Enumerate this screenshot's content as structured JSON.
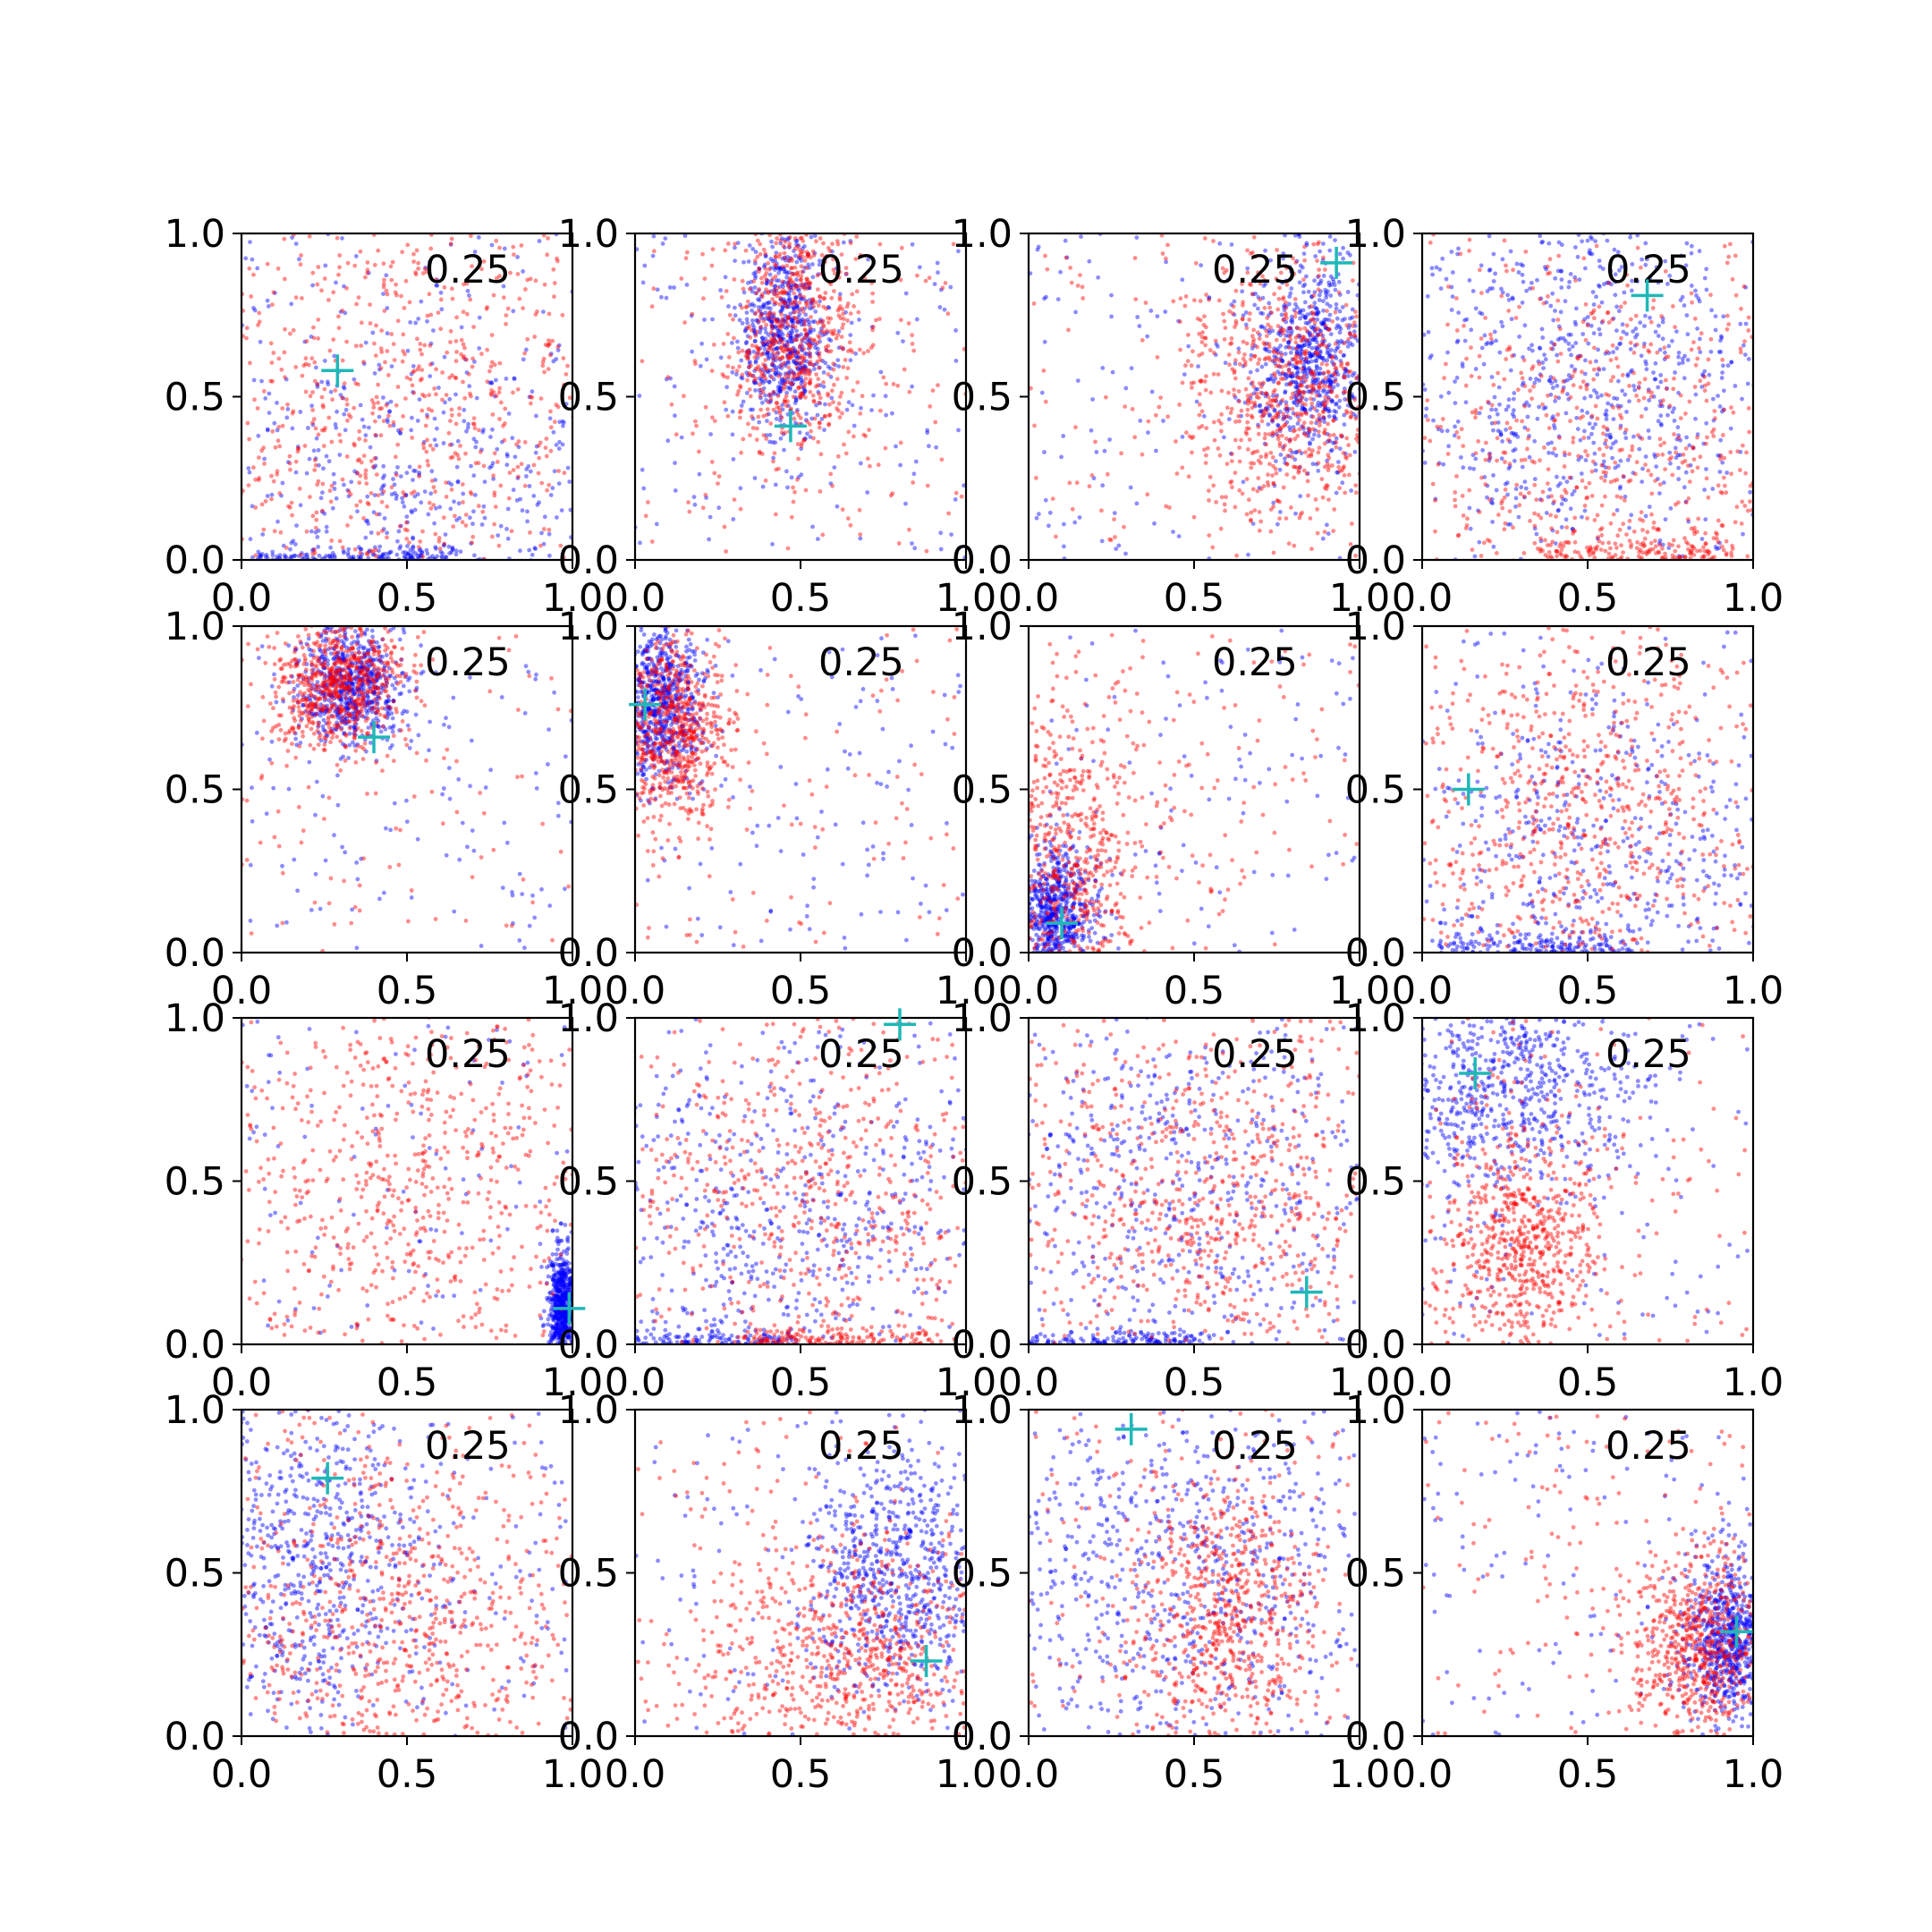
{
  "colors": {
    "series_a": "#0000ff",
    "series_b": "#ff0000",
    "marker": "#1fb8b8",
    "axes": "#000000",
    "background": "#ffffff"
  },
  "chart_data": {
    "type": "scatter",
    "layout": "4x4 grid of scatter panels",
    "grid": false,
    "legend": "none",
    "xlim": [
      0,
      1
    ],
    "ylim": [
      0,
      1
    ],
    "tick_labels": [
      "0.0",
      "0.5",
      "1.0"
    ],
    "panel_annotation": "0.25",
    "panels": [
      {
        "marker": [
          0.29,
          0.58
        ],
        "blue": {
          "cx": 0.55,
          "cy": 0.2,
          "sx": 0.4,
          "sy": 0.3,
          "band": [
            0.35,
            0.02
          ]
        },
        "red": {
          "cx": 0.5,
          "cy": 0.5,
          "sx": 0.35,
          "sy": 0.35
        }
      },
      {
        "marker": [
          0.47,
          0.41
        ],
        "blue": {
          "cx": 0.45,
          "cy": 0.7,
          "sx": 0.07,
          "sy": 0.16
        },
        "red": {
          "cx": 0.48,
          "cy": 0.72,
          "sx": 0.1,
          "sy": 0.2
        }
      },
      {
        "marker": [
          0.93,
          0.91
        ],
        "blue": {
          "cx": 0.85,
          "cy": 0.62,
          "sx": 0.09,
          "sy": 0.16
        },
        "red": {
          "cx": 0.78,
          "cy": 0.52,
          "sx": 0.16,
          "sy": 0.2
        }
      },
      {
        "marker": [
          0.68,
          0.81
        ],
        "blue": {
          "cx": 0.5,
          "cy": 0.6,
          "sx": 0.3,
          "sy": 0.3
        },
        "red": {
          "cx": 0.55,
          "cy": 0.35,
          "sx": 0.32,
          "sy": 0.3,
          "band": [
            0.65,
            0.04
          ]
        }
      },
      {
        "marker": [
          0.4,
          0.66
        ],
        "blue": {
          "cx": 0.33,
          "cy": 0.82,
          "sx": 0.08,
          "sy": 0.09
        },
        "red": {
          "cx": 0.3,
          "cy": 0.83,
          "sx": 0.1,
          "sy": 0.1
        }
      },
      {
        "marker": [
          0.03,
          0.76
        ],
        "blue": {
          "cx": 0.08,
          "cy": 0.76,
          "sx": 0.06,
          "sy": 0.12
        },
        "red": {
          "cx": 0.1,
          "cy": 0.68,
          "sx": 0.08,
          "sy": 0.15
        }
      },
      {
        "marker": [
          0.1,
          0.09
        ],
        "blue": {
          "cx": 0.08,
          "cy": 0.12,
          "sx": 0.06,
          "sy": 0.1
        },
        "red": {
          "cx": 0.12,
          "cy": 0.25,
          "sx": 0.12,
          "sy": 0.28
        }
      },
      {
        "marker": [
          0.14,
          0.5
        ],
        "blue": {
          "cx": 0.5,
          "cy": 0.25,
          "sx": 0.35,
          "sy": 0.3,
          "band": [
            0.35,
            0.03
          ]
        },
        "red": {
          "cx": 0.45,
          "cy": 0.45,
          "sx": 0.3,
          "sy": 0.3
        }
      },
      {
        "marker": [
          0.99,
          0.11
        ],
        "blue": {
          "cx": 0.97,
          "cy": 0.12,
          "sx": 0.02,
          "sy": 0.08
        },
        "red": {
          "cx": 0.5,
          "cy": 0.5,
          "sx": 0.35,
          "sy": 0.35
        }
      },
      {
        "marker": [
          0.8,
          0.98
        ],
        "blue": {
          "cx": 0.45,
          "cy": 0.35,
          "sx": 0.35,
          "sy": 0.3,
          "band": [
            0.2,
            0.02
          ]
        },
        "red": {
          "cx": 0.55,
          "cy": 0.45,
          "sx": 0.3,
          "sy": 0.3,
          "band": [
            0.6,
            0.03
          ]
        }
      },
      {
        "marker": [
          0.84,
          0.16
        ],
        "blue": {
          "cx": 0.45,
          "cy": 0.45,
          "sx": 0.35,
          "sy": 0.32,
          "band": [
            0.25,
            0.02
          ]
        },
        "red": {
          "cx": 0.55,
          "cy": 0.45,
          "sx": 0.3,
          "sy": 0.3
        }
      },
      {
        "marker": [
          0.16,
          0.83
        ],
        "blue": {
          "cx": 0.25,
          "cy": 0.8,
          "sx": 0.2,
          "sy": 0.15
        },
        "red": {
          "cx": 0.3,
          "cy": 0.3,
          "sx": 0.12,
          "sy": 0.2
        }
      },
      {
        "marker": [
          0.26,
          0.79
        ],
        "blue": {
          "cx": 0.2,
          "cy": 0.55,
          "sx": 0.2,
          "sy": 0.3
        },
        "red": {
          "cx": 0.45,
          "cy": 0.35,
          "sx": 0.28,
          "sy": 0.3
        }
      },
      {
        "marker": [
          0.88,
          0.23
        ],
        "blue": {
          "cx": 0.8,
          "cy": 0.5,
          "sx": 0.15,
          "sy": 0.2
        },
        "red": {
          "cx": 0.65,
          "cy": 0.25,
          "sx": 0.22,
          "sy": 0.18
        }
      },
      {
        "marker": [
          0.31,
          0.94
        ],
        "blue": {
          "cx": 0.45,
          "cy": 0.5,
          "sx": 0.3,
          "sy": 0.3
        },
        "red": {
          "cx": 0.6,
          "cy": 0.35,
          "sx": 0.15,
          "sy": 0.22
        }
      },
      {
        "marker": [
          0.95,
          0.32
        ],
        "blue": {
          "cx": 0.92,
          "cy": 0.3,
          "sx": 0.06,
          "sy": 0.12
        },
        "red": {
          "cx": 0.85,
          "cy": 0.28,
          "sx": 0.12,
          "sy": 0.15
        }
      }
    ]
  }
}
